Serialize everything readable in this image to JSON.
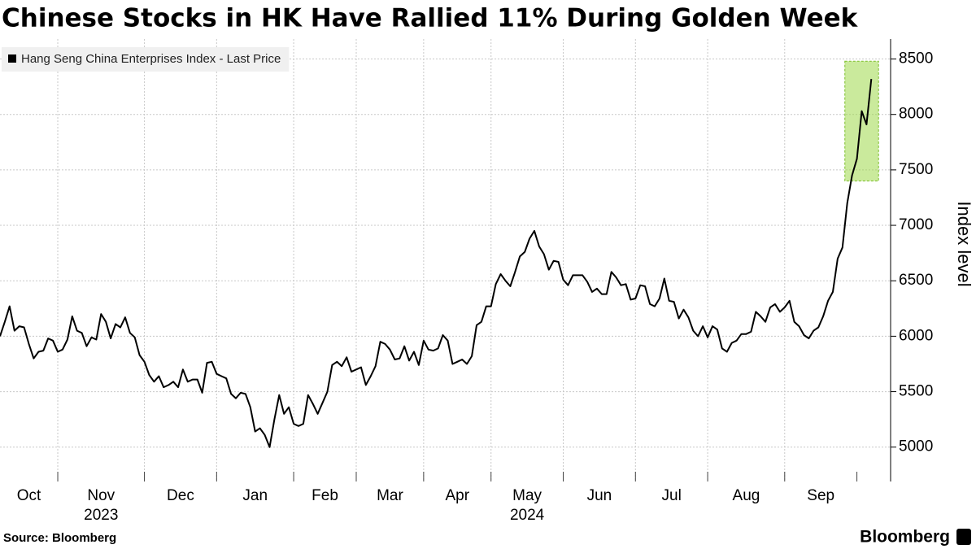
{
  "chart_data": {
    "type": "line",
    "title": "Chinese Stocks in HK Have Rallied 11% During Golden Week",
    "y_axis_label": "Index level",
    "source": "Source: Bloomberg",
    "brand": "Bloomberg",
    "series": [
      {
        "name": "Hang Seng China Enterprises Index - Last Price",
        "color": "#000000",
        "values": [
          6000,
          6130,
          6270,
          6050,
          6090,
          6080,
          5930,
          5800,
          5860,
          5870,
          5980,
          5960,
          5860,
          5880,
          5970,
          6180,
          6050,
          6030,
          5910,
          5990,
          5970,
          6200,
          6130,
          5980,
          6110,
          6080,
          6170,
          6030,
          5990,
          5830,
          5770,
          5650,
          5590,
          5640,
          5540,
          5560,
          5590,
          5540,
          5700,
          5590,
          5610,
          5610,
          5490,
          5760,
          5770,
          5660,
          5640,
          5620,
          5480,
          5440,
          5490,
          5480,
          5360,
          5140,
          5170,
          5110,
          5000,
          5250,
          5470,
          5300,
          5360,
          5210,
          5190,
          5210,
          5470,
          5390,
          5300,
          5400,
          5500,
          5740,
          5770,
          5730,
          5810,
          5680,
          5700,
          5720,
          5560,
          5640,
          5730,
          5950,
          5930,
          5880,
          5790,
          5800,
          5910,
          5780,
          5860,
          5740,
          5960,
          5880,
          5870,
          5890,
          6010,
          5960,
          5750,
          5770,
          5790,
          5750,
          5820,
          6100,
          6130,
          6270,
          6270,
          6470,
          6560,
          6500,
          6450,
          6580,
          6720,
          6760,
          6880,
          6950,
          6810,
          6740,
          6600,
          6680,
          6670,
          6510,
          6460,
          6550,
          6550,
          6550,
          6490,
          6400,
          6430,
          6380,
          6380,
          6580,
          6530,
          6460,
          6470,
          6330,
          6340,
          6460,
          6450,
          6290,
          6270,
          6340,
          6520,
          6320,
          6310,
          6160,
          6240,
          6170,
          6050,
          6000,
          6090,
          5990,
          6090,
          6060,
          5890,
          5860,
          5940,
          5960,
          6020,
          6020,
          6040,
          6220,
          6180,
          6130,
          6260,
          6290,
          6220,
          6260,
          6320,
          6130,
          6090,
          6010,
          5980,
          6050,
          6080,
          6180,
          6320,
          6400,
          6700,
          6800,
          7200,
          7450,
          7600,
          8030,
          7910,
          8320
        ]
      }
    ],
    "xlim": [
      0,
      185
    ],
    "xticks": [
      12,
      30,
      45,
      61,
      74,
      88,
      102,
      117,
      132,
      147,
      163,
      178
    ],
    "x_labels": [
      "Oct",
      "Nov",
      "Dec",
      "Jan",
      "Feb",
      "Mar",
      "Apr",
      "May",
      "Jun",
      "Jul",
      "Aug",
      "Sep"
    ],
    "year_labels": [
      "2023",
      "2024"
    ],
    "ylim": [
      4690,
      8680
    ],
    "yticks": [
      5000,
      5500,
      6000,
      6500,
      7000,
      7500,
      8000,
      8500
    ],
    "grid": true,
    "legend": "top-left",
    "highlight": {
      "xlim": [
        175.5,
        182.5
      ],
      "ylim": [
        7400,
        8480
      ],
      "color": "#9ed94a"
    }
  }
}
